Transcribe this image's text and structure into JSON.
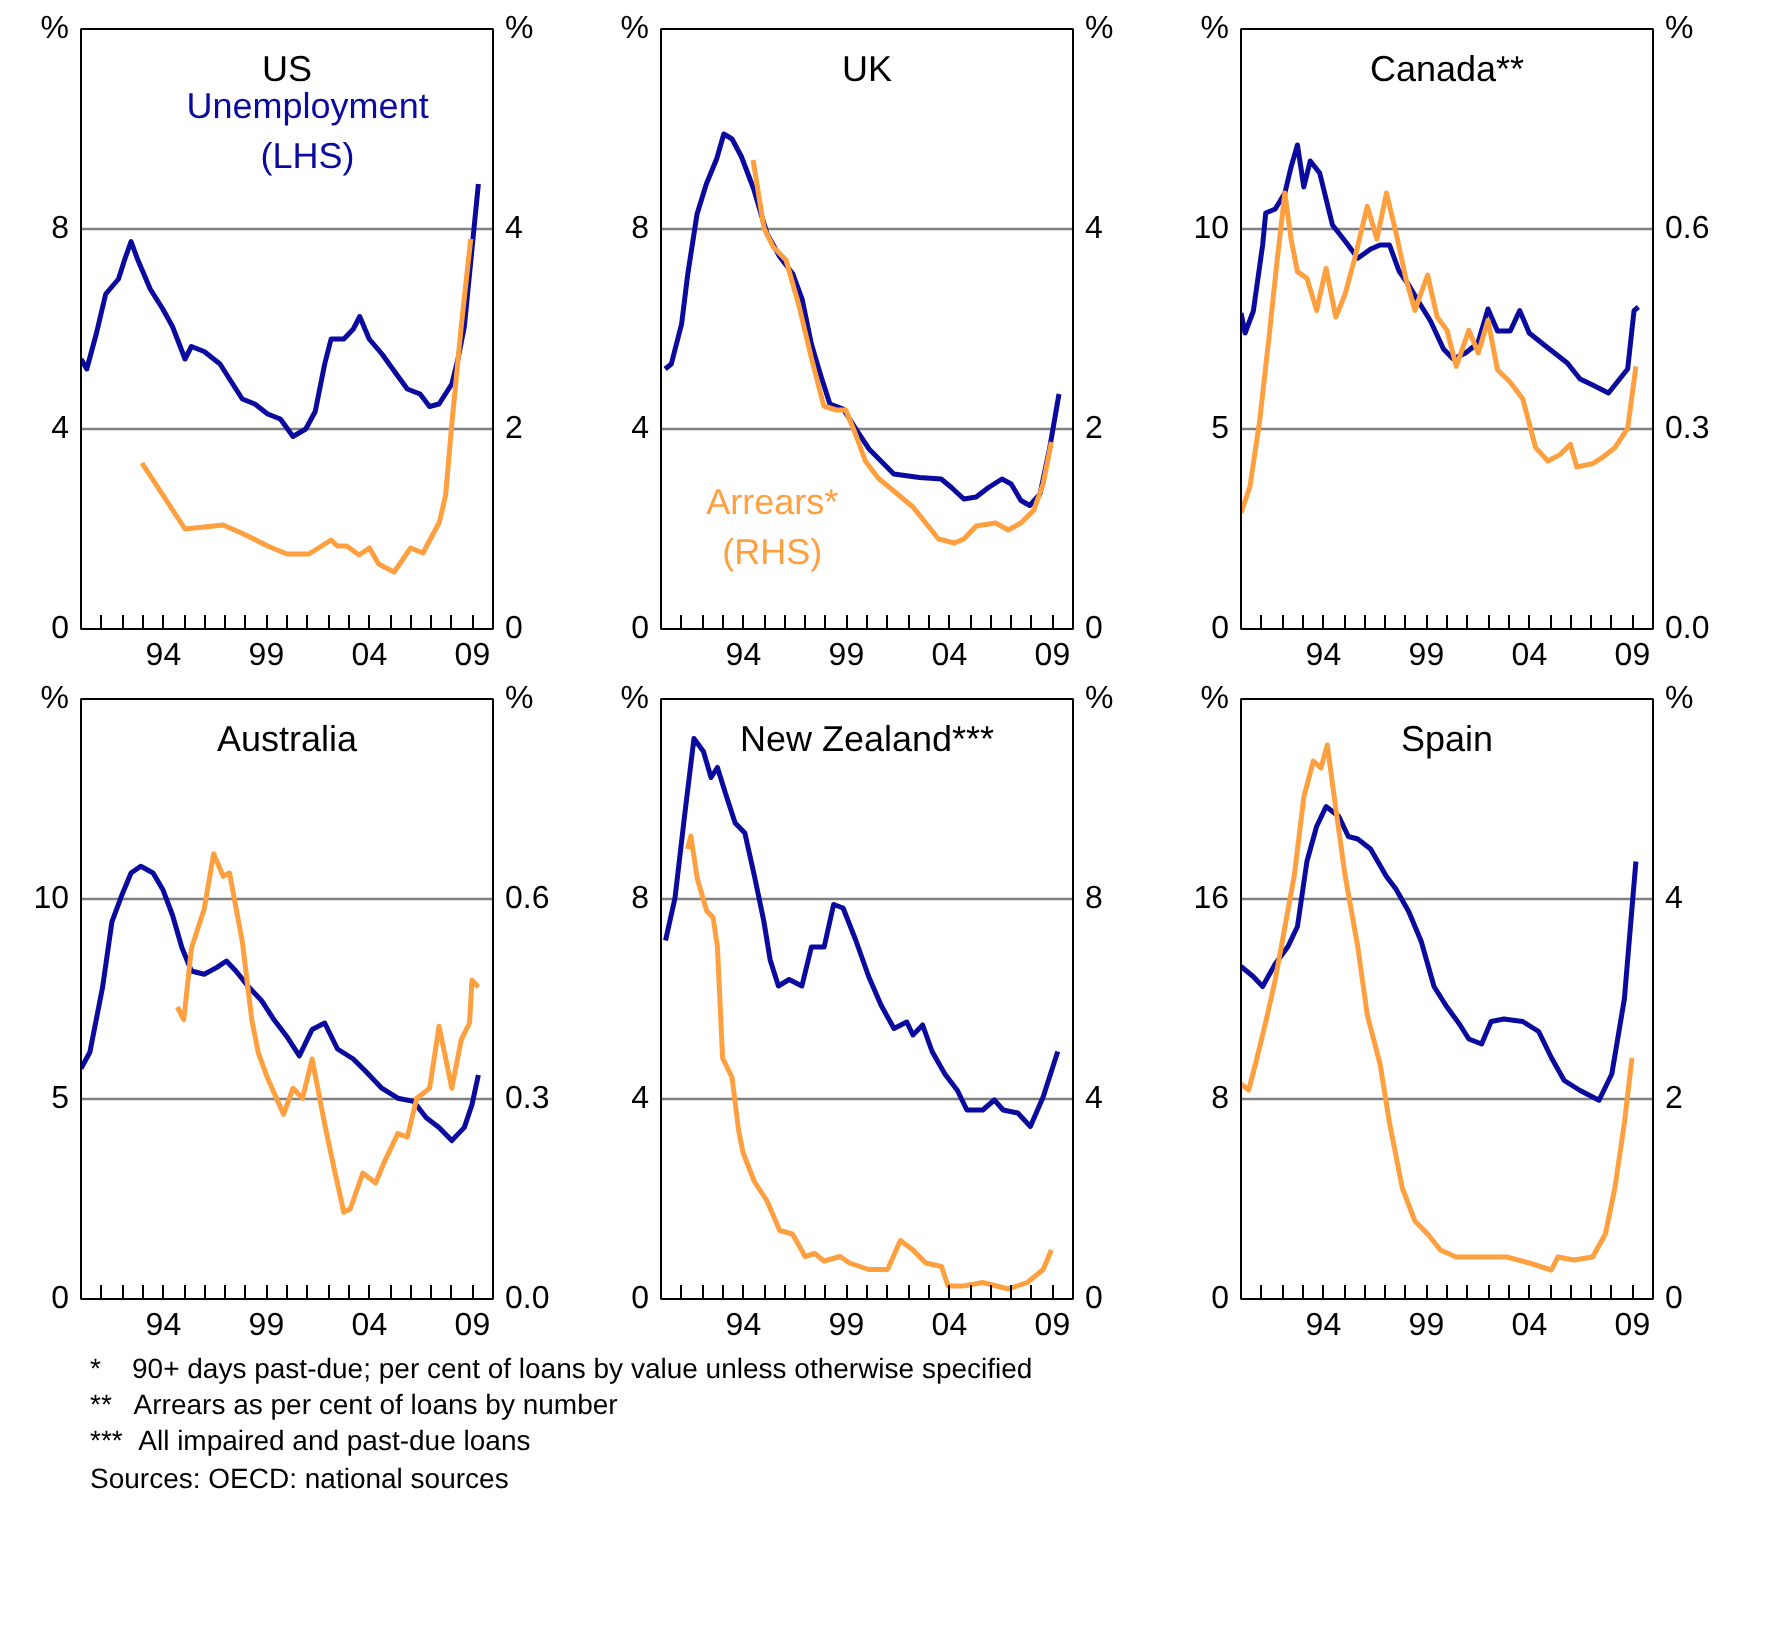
{
  "chart_data": [
    {
      "type": "line",
      "title": "US",
      "ylabel": "%",
      "y2label": "%",
      "xlim": [
        1990,
        2010
      ],
      "xticks": [
        {
          "value": 1991,
          "label": null
        },
        {
          "value": 1992,
          "label": null
        },
        {
          "value": 1993,
          "label": null
        },
        {
          "value": 1994,
          "label": "94"
        },
        {
          "value": 1995,
          "label": null
        },
        {
          "value": 1996,
          "label": null
        },
        {
          "value": 1997,
          "label": null
        },
        {
          "value": 1998,
          "label": null
        },
        {
          "value": 1999,
          "label": "99"
        },
        {
          "value": 2000,
          "label": null
        },
        {
          "value": 2001,
          "label": null
        },
        {
          "value": 2002,
          "label": null
        },
        {
          "value": 2003,
          "label": null
        },
        {
          "value": 2004,
          "label": "04"
        },
        {
          "value": 2005,
          "label": null
        },
        {
          "value": 2006,
          "label": null
        },
        {
          "value": 2007,
          "label": null
        },
        {
          "value": 2008,
          "label": null
        },
        {
          "value": 2009,
          "label": "09"
        }
      ],
      "ylim": [
        0,
        12
      ],
      "yticks": [
        0,
        4,
        8
      ],
      "y2lim": [
        0,
        6
      ],
      "y2ticks": [
        0,
        2,
        4
      ],
      "grid": "y",
      "series": [
        {
          "name": "Unemployment (LHS)",
          "color": "#0a0a9e",
          "x": [
            1990.0,
            1990.28,
            1990.74,
            1991.2,
            1991.82,
            1992.13,
            1992.43,
            1992.74,
            1993.36,
            1993.97,
            1994.44,
            1995.05,
            1995.36,
            1995.98,
            1996.75,
            1997.21,
            1997.83,
            1998.44,
            1999.06,
            1999.68,
            2000.29,
            2000.91,
            2001.37,
            2001.83,
            2002.14,
            2002.76,
            2003.22,
            2003.53,
            2003.99,
            2004.61,
            2005.22,
            2005.84,
            2006.46,
            2006.92,
            2007.38,
            2008.0,
            2008.3,
            2008.61,
            2008.92,
            2009.29
          ],
          "values": [
            5.4,
            5.2,
            5.9,
            6.7,
            7.0,
            7.4,
            7.75,
            7.4,
            6.8,
            6.4,
            6.05,
            5.4,
            5.65,
            5.55,
            5.3,
            5.0,
            4.6,
            4.5,
            4.3,
            4.2,
            3.85,
            4.0,
            4.35,
            5.3,
            5.8,
            5.8,
            6.0,
            6.25,
            5.8,
            5.5,
            5.15,
            4.8,
            4.7,
            4.45,
            4.5,
            4.9,
            5.4,
            6.05,
            7.35,
            8.9
          ]
        },
        {
          "color": "#ffa040",
          "axis": "y2",
          "x": [
            1992.96,
            1995.05,
            1996.9,
            1998.0,
            1999.06,
            2000.0,
            2001.06,
            2002.14,
            2002.45,
            2002.9,
            2003.5,
            2004.0,
            2004.45,
            2005.2,
            2006.0,
            2006.6,
            2007.4,
            2007.7,
            2008.0,
            2008.46,
            2008.92
          ],
          "values": [
            1.66,
            1.0,
            1.04,
            0.94,
            0.83,
            0.75,
            0.75,
            0.89,
            0.83,
            0.83,
            0.74,
            0.81,
            0.65,
            0.57,
            0.81,
            0.76,
            1.07,
            1.34,
            2.05,
            3.03,
            3.9
          ]
        }
      ]
    },
    {
      "type": "line",
      "title": "UK",
      "ylabel": "%",
      "y2label": "%",
      "xlim": [
        1990,
        2010
      ],
      "xticks": [
        {
          "value": 1991,
          "label": null
        },
        {
          "value": 1992,
          "label": null
        },
        {
          "value": 1993,
          "label": null
        },
        {
          "value": 1994,
          "label": "94"
        },
        {
          "value": 1995,
          "label": null
        },
        {
          "value": 1996,
          "label": null
        },
        {
          "value": 1997,
          "label": null
        },
        {
          "value": 1998,
          "label": null
        },
        {
          "value": 1999,
          "label": "99"
        },
        {
          "value": 2000,
          "label": null
        },
        {
          "value": 2001,
          "label": null
        },
        {
          "value": 2002,
          "label": null
        },
        {
          "value": 2003,
          "label": null
        },
        {
          "value": 2004,
          "label": "04"
        },
        {
          "value": 2005,
          "label": null
        },
        {
          "value": 2006,
          "label": null
        },
        {
          "value": 2007,
          "label": null
        },
        {
          "value": 2008,
          "label": null
        },
        {
          "value": 2009,
          "label": "09"
        }
      ],
      "ylim": [
        0,
        12
      ],
      "yticks": [
        0,
        4,
        8
      ],
      "y2lim": [
        0,
        6
      ],
      "y2ticks": [
        0,
        2,
        4
      ],
      "grid": "y",
      "series": [
        {
          "color": "#0a0a9e",
          "x": [
            1990.2,
            1990.5,
            1991.0,
            1991.3,
            1991.75,
            1992.2,
            1992.7,
            1993.05,
            1993.45,
            1993.9,
            1994.5,
            1995.15,
            1995.76,
            1996.4,
            1996.85,
            1997.3,
            1997.77,
            1998.2,
            1998.85,
            1999.46,
            2000.1,
            2000.7,
            2001.3,
            2002.54,
            2003.6,
            2004.1,
            2004.7,
            2005.3,
            2005.9,
            2006.55,
            2007.0,
            2007.47,
            2007.9,
            2008.4,
            2008.86,
            2009.32
          ],
          "values": [
            5.2,
            5.3,
            6.1,
            7.1,
            8.3,
            8.9,
            9.4,
            9.9,
            9.8,
            9.45,
            8.8,
            7.9,
            7.45,
            7.1,
            6.6,
            5.7,
            5.05,
            4.5,
            4.4,
            4.0,
            3.6,
            3.35,
            3.1,
            3.03,
            3.0,
            2.83,
            2.6,
            2.64,
            2.83,
            3.0,
            2.9,
            2.57,
            2.47,
            2.7,
            3.6,
            4.7
          ]
        },
        {
          "name": "Arrears* (RHS)",
          "color": "#ffa040",
          "axis": "y2",
          "x": [
            1994.47,
            1995.0,
            1995.45,
            1996.07,
            1996.7,
            1997.3,
            1997.9,
            1998.5,
            1998.97,
            1999.46,
            1999.92,
            2000.54,
            2001.3,
            2002.23,
            2002.85,
            2003.47,
            2004.24,
            2004.7,
            2005.3,
            2006.24,
            2006.86,
            2007.47,
            2008.1,
            2008.55,
            2008.95
          ],
          "values": [
            4.69,
            4.01,
            3.82,
            3.69,
            3.23,
            2.71,
            2.23,
            2.19,
            2.19,
            1.94,
            1.68,
            1.51,
            1.38,
            1.22,
            1.06,
            0.9,
            0.86,
            0.9,
            1.03,
            1.06,
            0.99,
            1.06,
            1.19,
            1.45,
            1.87
          ]
        }
      ]
    },
    {
      "type": "line",
      "title": "Canada**",
      "ylabel": "%",
      "y2label": "%",
      "xlim": [
        1990,
        2010
      ],
      "xticks": [
        {
          "value": 1991,
          "label": null
        },
        {
          "value": 1992,
          "label": null
        },
        {
          "value": 1993,
          "label": null
        },
        {
          "value": 1994,
          "label": "94"
        },
        {
          "value": 1995,
          "label": null
        },
        {
          "value": 1996,
          "label": null
        },
        {
          "value": 1997,
          "label": null
        },
        {
          "value": 1998,
          "label": null
        },
        {
          "value": 1999,
          "label": "99"
        },
        {
          "value": 2000,
          "label": null
        },
        {
          "value": 2001,
          "label": null
        },
        {
          "value": 2002,
          "label": null
        },
        {
          "value": 2003,
          "label": null
        },
        {
          "value": 2004,
          "label": "04"
        },
        {
          "value": 2005,
          "label": null
        },
        {
          "value": 2006,
          "label": null
        },
        {
          "value": 2007,
          "label": null
        },
        {
          "value": 2008,
          "label": null
        },
        {
          "value": 2009,
          "label": "09"
        }
      ],
      "ylim": [
        0,
        15
      ],
      "yticks": [
        0,
        5,
        10
      ],
      "y2lim": [
        0,
        0.9
      ],
      "y2ticks": [
        {
          "value": 0,
          "label": "0.0"
        },
        0.3,
        0.6
      ],
      "grid": "y",
      "series": [
        {
          "color": "#0a0a9e",
          "x": [
            1990.0,
            1990.2,
            1990.6,
            1991.05,
            1991.2,
            1991.66,
            1992.13,
            1992.43,
            1992.74,
            1993.05,
            1993.36,
            1993.82,
            1994.44,
            1995.05,
            1995.67,
            1996.3,
            1996.75,
            1997.21,
            1997.67,
            1998.14,
            1998.6,
            1999.2,
            1999.83,
            2000.3,
            2000.9,
            2001.5,
            2001.99,
            2002.45,
            2003.07,
            2003.53,
            2003.99,
            2004.6,
            2005.22,
            2005.84,
            2006.46,
            2007.07,
            2007.84,
            2008.15,
            2008.77,
            2009.08,
            2009.29
          ],
          "values": [
            7.9,
            7.4,
            7.95,
            9.6,
            10.4,
            10.5,
            10.9,
            11.55,
            12.1,
            11.05,
            11.7,
            11.4,
            10.1,
            9.7,
            9.27,
            9.5,
            9.6,
            9.6,
            8.95,
            8.6,
            8.2,
            7.7,
            7.0,
            6.75,
            6.9,
            7.15,
            8.0,
            7.45,
            7.45,
            7.96,
            7.4,
            7.15,
            6.9,
            6.65,
            6.25,
            6.1,
            5.9,
            6.1,
            6.5,
            7.96,
            8.05
          ]
        },
        {
          "color": "#ffa040",
          "axis": "y2",
          "x": [
            1990.0,
            1990.43,
            1990.9,
            1991.36,
            1991.73,
            1992.13,
            1992.43,
            1992.74,
            1993.2,
            1993.67,
            1994.13,
            1994.6,
            1995.05,
            1995.52,
            1996.13,
            1996.6,
            1997.06,
            1997.52,
            1998.0,
            1998.44,
            1999.06,
            1999.52,
            2000.0,
            2000.45,
            2001.06,
            2001.52,
            2001.99,
            2002.45,
            2003.07,
            2003.68,
            2004.3,
            2004.9,
            2005.5,
            2005.99,
            2006.3,
            2007.07,
            2007.53,
            2008.15,
            2008.77,
            2009.17
          ],
          "values": [
            0.174,
            0.213,
            0.311,
            0.438,
            0.546,
            0.654,
            0.585,
            0.536,
            0.526,
            0.478,
            0.541,
            0.468,
            0.502,
            0.556,
            0.634,
            0.585,
            0.654,
            0.595,
            0.526,
            0.478,
            0.531,
            0.468,
            0.448,
            0.394,
            0.448,
            0.414,
            0.463,
            0.389,
            0.37,
            0.345,
            0.272,
            0.252,
            0.262,
            0.277,
            0.243,
            0.248,
            0.257,
            0.272,
            0.301,
            0.394
          ]
        }
      ]
    },
    {
      "type": "line",
      "title": "Australia",
      "ylabel": "%",
      "y2label": "%",
      "xlim": [
        1990,
        2010
      ],
      "xticks": [
        {
          "value": 1991,
          "label": null
        },
        {
          "value": 1992,
          "label": null
        },
        {
          "value": 1993,
          "label": null
        },
        {
          "value": 1994,
          "label": "94"
        },
        {
          "value": 1995,
          "label": null
        },
        {
          "value": 1996,
          "label": null
        },
        {
          "value": 1997,
          "label": null
        },
        {
          "value": 1998,
          "label": null
        },
        {
          "value": 1999,
          "label": "99"
        },
        {
          "value": 2000,
          "label": null
        },
        {
          "value": 2001,
          "label": null
        },
        {
          "value": 2002,
          "label": null
        },
        {
          "value": 2003,
          "label": null
        },
        {
          "value": 2004,
          "label": "04"
        },
        {
          "value": 2005,
          "label": null
        },
        {
          "value": 2006,
          "label": null
        },
        {
          "value": 2007,
          "label": null
        },
        {
          "value": 2008,
          "label": null
        },
        {
          "value": 2009,
          "label": "09"
        }
      ],
      "ylim": [
        0,
        15
      ],
      "yticks": [
        0,
        5,
        10
      ],
      "y2lim": [
        0,
        0.9
      ],
      "y2ticks": [
        {
          "value": 0,
          "label": "0.0"
        },
        0.3,
        0.6
      ],
      "grid": "y",
      "series": [
        {
          "color": "#0a0a9e",
          "x": [
            1990.0,
            1990.43,
            1991.05,
            1991.5,
            1991.97,
            1992.43,
            1992.9,
            1993.5,
            1993.97,
            1994.44,
            1994.9,
            1995.36,
            1995.98,
            1996.6,
            1997.06,
            1997.52,
            1998.14,
            1998.75,
            1999.37,
            1999.98,
            2000.6,
            2001.22,
            2001.83,
            2002.45,
            2003.22,
            2003.84,
            2004.6,
            2005.38,
            2006.15,
            2006.76,
            2007.38,
            2008.0,
            2008.61,
            2008.98,
            2009.29
          ],
          "values": [
            5.76,
            6.17,
            7.8,
            9.43,
            10.08,
            10.65,
            10.82,
            10.65,
            10.24,
            9.6,
            8.78,
            8.2,
            8.12,
            8.29,
            8.45,
            8.2,
            7.8,
            7.47,
            6.98,
            6.57,
            6.08,
            6.74,
            6.9,
            6.25,
            6.0,
            5.68,
            5.27,
            5.02,
            4.94,
            4.53,
            4.29,
            3.96,
            4.29,
            4.86,
            5.6
          ]
        },
        {
          "color": "#ffa040",
          "axis": "y2",
          "x": [
            1994.68,
            1994.99,
            1995.36,
            1995.98,
            1996.44,
            1996.9,
            1997.21,
            1997.83,
            1998.29,
            1998.6,
            1999.06,
            1999.83,
            2000.29,
            2000.75,
            2001.22,
            2001.83,
            2002.3,
            2002.76,
            2003.07,
            2003.68,
            2004.3,
            2004.76,
            2005.38,
            2005.84,
            2006.3,
            2006.92,
            2007.38,
            2008.0,
            2008.46,
            2008.86,
            2008.98,
            2009.29
          ],
          "values": [
            0.438,
            0.419,
            0.526,
            0.585,
            0.668,
            0.634,
            0.639,
            0.536,
            0.419,
            0.37,
            0.331,
            0.277,
            0.316,
            0.301,
            0.36,
            0.262,
            0.194,
            0.13,
            0.135,
            0.189,
            0.174,
            0.208,
            0.248,
            0.243,
            0.301,
            0.316,
            0.409,
            0.316,
            0.389,
            0.414,
            0.478,
            0.468
          ]
        }
      ]
    },
    {
      "type": "line",
      "title": "New Zealand***",
      "ylabel": "%",
      "y2label": "%",
      "xlim": [
        1990,
        2010
      ],
      "xticks": [
        {
          "value": 1991,
          "label": null
        },
        {
          "value": 1992,
          "label": null
        },
        {
          "value": 1993,
          "label": null
        },
        {
          "value": 1994,
          "label": "94"
        },
        {
          "value": 1995,
          "label": null
        },
        {
          "value": 1996,
          "label": null
        },
        {
          "value": 1997,
          "label": null
        },
        {
          "value": 1998,
          "label": null
        },
        {
          "value": 1999,
          "label": "99"
        },
        {
          "value": 2000,
          "label": null
        },
        {
          "value": 2001,
          "label": null
        },
        {
          "value": 2002,
          "label": null
        },
        {
          "value": 2003,
          "label": null
        },
        {
          "value": 2004,
          "label": "04"
        },
        {
          "value": 2005,
          "label": null
        },
        {
          "value": 2006,
          "label": null
        },
        {
          "value": 2007,
          "label": null
        },
        {
          "value": 2008,
          "label": null
        },
        {
          "value": 2009,
          "label": "09"
        }
      ],
      "ylim": [
        0,
        12
      ],
      "yticks": [
        0,
        4,
        8
      ],
      "y2lim": [
        0,
        12
      ],
      "y2ticks": [
        0,
        4,
        8
      ],
      "grid": "y",
      "series": [
        {
          "color": "#0a0a9e",
          "x": [
            1990.22,
            1990.68,
            1991.14,
            1991.6,
            1992.06,
            1992.43,
            1992.74,
            1993.14,
            1993.6,
            1994.07,
            1994.53,
            1994.99,
            1995.3,
            1995.7,
            1996.22,
            1996.84,
            1997.3,
            1997.92,
            1998.38,
            1998.84,
            1999.46,
            2000.08,
            2000.69,
            2001.31,
            2001.93,
            2002.23,
            2002.7,
            2003.16,
            2003.78,
            2004.39,
            2004.85,
            2005.62,
            2006.18,
            2006.61,
            2007.32,
            2007.93,
            2008.55,
            2009.26
          ],
          "values": [
            7.17,
            8.02,
            9.65,
            11.21,
            10.95,
            10.43,
            10.63,
            10.1,
            9.52,
            9.32,
            8.47,
            7.56,
            6.78,
            6.26,
            6.39,
            6.26,
            7.04,
            7.04,
            7.89,
            7.82,
            7.17,
            6.45,
            5.87,
            5.41,
            5.54,
            5.28,
            5.48,
            4.95,
            4.5,
            4.17,
            3.78,
            3.78,
            3.98,
            3.78,
            3.72,
            3.45,
            4.04,
            4.95
          ]
        },
        {
          "color": "#ffa040",
          "axis": "y2",
          "x": [
            1991.29,
            1991.45,
            1991.76,
            1992.22,
            1992.53,
            1992.74,
            1992.99,
            1993.45,
            1993.76,
            1993.98,
            1994.53,
            1995.15,
            1995.76,
            1996.38,
            1997.0,
            1997.46,
            1997.92,
            1998.69,
            1999.15,
            2000.08,
            2001.0,
            2001.62,
            2002.23,
            2002.85,
            2003.62,
            2003.93,
            2004.7,
            2005.62,
            2006.86,
            2007.78,
            2008.55,
            2008.95
          ],
          "values": [
            9.0,
            9.26,
            8.41,
            7.76,
            7.63,
            7.04,
            4.82,
            4.43,
            3.39,
            2.93,
            2.35,
            1.96,
            1.37,
            1.3,
            0.85,
            0.91,
            0.76,
            0.85,
            0.72,
            0.59,
            0.59,
            1.17,
            0.98,
            0.72,
            0.65,
            0.26,
            0.26,
            0.33,
            0.2,
            0.33,
            0.59,
            0.98
          ]
        }
      ]
    },
    {
      "type": "line",
      "title": "Spain",
      "ylabel": "%",
      "y2label": "%",
      "xlim": [
        1990,
        2010
      ],
      "xticks": [
        {
          "value": 1991,
          "label": null
        },
        {
          "value": 1992,
          "label": null
        },
        {
          "value": 1993,
          "label": null
        },
        {
          "value": 1994,
          "label": "94"
        },
        {
          "value": 1995,
          "label": null
        },
        {
          "value": 1996,
          "label": null
        },
        {
          "value": 1997,
          "label": null
        },
        {
          "value": 1998,
          "label": null
        },
        {
          "value": 1999,
          "label": "99"
        },
        {
          "value": 2000,
          "label": null
        },
        {
          "value": 2001,
          "label": null
        },
        {
          "value": 2002,
          "label": null
        },
        {
          "value": 2003,
          "label": null
        },
        {
          "value": 2004,
          "label": "04"
        },
        {
          "value": 2005,
          "label": null
        },
        {
          "value": 2006,
          "label": null
        },
        {
          "value": 2007,
          "label": null
        },
        {
          "value": 2008,
          "label": null
        },
        {
          "value": 2009,
          "label": "09"
        }
      ],
      "ylim": [
        0,
        24
      ],
      "yticks": [
        0,
        8,
        16
      ],
      "y2lim": [
        0,
        6
      ],
      "y2ticks": [
        0,
        2,
        4
      ],
      "grid": "y",
      "annotations": [
        "*    90+ days past-due; per cent of loans by value unless otherwise specified",
        "**   Arrears as per cent of loans by number",
        "***  All impaired and past-due loans",
        "Sources: OECD: national sources"
      ],
      "series": [
        {
          "color": "#0a0a9e",
          "x": [
            1990.0,
            1990.59,
            1991.05,
            1991.66,
            1992.28,
            1992.74,
            1993.2,
            1993.67,
            1994.13,
            1994.75,
            1995.21,
            1995.67,
            1996.29,
            1997.06,
            1997.52,
            1998.14,
            1998.75,
            1999.37,
            1999.98,
            2000.6,
            2001.06,
            2001.68,
            2002.14,
            2002.76,
            2003.68,
            2004.45,
            2005.07,
            2005.69,
            2006.46,
            2007.38,
            2008.0,
            2008.61,
            2009.17
          ],
          "values": [
            13.3,
            12.9,
            12.5,
            13.4,
            14.1,
            14.9,
            17.5,
            18.9,
            19.7,
            19.3,
            18.5,
            18.4,
            18.0,
            16.9,
            16.4,
            15.5,
            14.3,
            12.5,
            11.7,
            11.0,
            10.4,
            10.2,
            11.1,
            11.2,
            11.1,
            10.7,
            9.65,
            8.74,
            8.34,
            7.95,
            9.0,
            12.0,
            17.5
          ]
        },
        {
          "color": "#ffa040",
          "axis": "y2",
          "x": [
            1990.0,
            1990.37,
            1990.74,
            1991.2,
            1991.66,
            1992.13,
            1992.59,
            1993.05,
            1993.51,
            1993.88,
            1994.19,
            1994.59,
            1995.05,
            1995.67,
            1996.13,
            1996.75,
            1997.21,
            1997.83,
            1998.44,
            1999.06,
            1999.68,
            2000.45,
            2001.52,
            2002.91,
            2003.99,
            2005.07,
            2005.38,
            2006.15,
            2007.07,
            2007.69,
            2008.15,
            2008.61,
            2008.98
          ],
          "values": [
            2.15,
            2.09,
            2.38,
            2.77,
            3.19,
            3.72,
            4.24,
            5.02,
            5.38,
            5.31,
            5.54,
            4.92,
            4.24,
            3.52,
            2.84,
            2.35,
            1.76,
            1.11,
            0.78,
            0.65,
            0.49,
            0.42,
            0.42,
            0.42,
            0.36,
            0.29,
            0.42,
            0.39,
            0.42,
            0.65,
            1.11,
            1.76,
            2.41
          ]
        }
      ]
    }
  ]
}
